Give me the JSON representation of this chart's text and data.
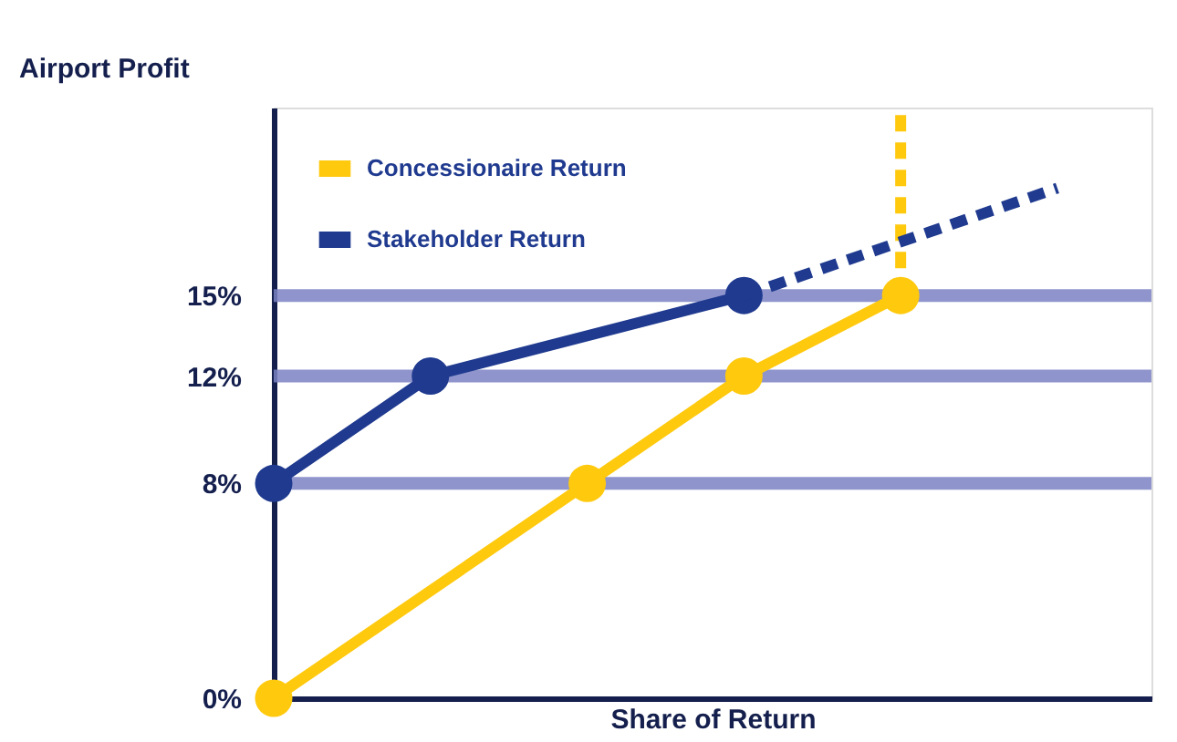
{
  "chart_data": {
    "type": "line",
    "xlabel": "Share of Return",
    "ylabel": "Airport Profit",
    "ylim": [
      0,
      22
    ],
    "categories": [
      null,
      null,
      null,
      null,
      null,
      null
    ],
    "yticks": [
      {
        "value": 0,
        "label": "0%"
      },
      {
        "value": 8,
        "label": "8%"
      },
      {
        "value": 12,
        "label": "12%"
      },
      {
        "value": 15,
        "label": "15%"
      }
    ],
    "tick_labels": "y",
    "legend": "top left",
    "ref_lines": [
      {
        "axis": "y",
        "value": 8,
        "color": "#7b83c3"
      },
      {
        "axis": "y",
        "value": 12,
        "color": "#7b83c3"
      },
      {
        "axis": "y",
        "value": 15,
        "color": "#7b83c3"
      }
    ],
    "series": [
      {
        "name": "Concessionaire Return",
        "color": "#ffc90e",
        "values": [
          0,
          null,
          8,
          12,
          15,
          null
        ],
        "marker": "circle",
        "line_style": "solid"
      },
      {
        "name": "Stakeholder Return",
        "color": "#1f3a8f",
        "values": [
          8,
          12,
          null,
          15,
          null,
          null
        ],
        "marker": "circle",
        "line_style": "solid"
      },
      {
        "color": "#1f3a8f",
        "values": [
          null,
          null,
          null,
          15,
          null,
          19
        ],
        "line_style": "dashed"
      }
    ]
  }
}
